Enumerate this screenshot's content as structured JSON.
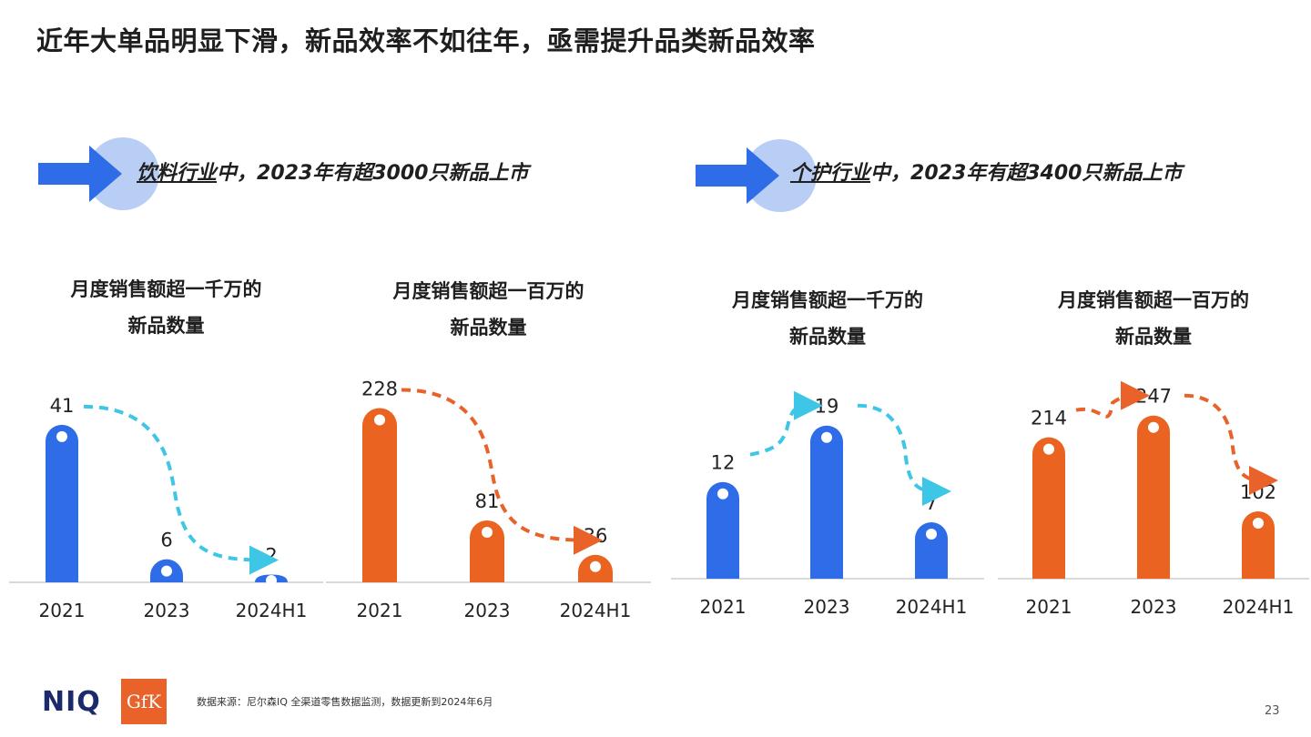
{
  "page": {
    "title": "近年大单品明显下滑，新品效率不如往年，亟需提升品类新品效率",
    "page_number": "23",
    "source": "数据来源：尼尔森IQ 全渠道零售数据监测，数据更新到2024年6月",
    "logos": {
      "niq": "NIQ",
      "gfk": "GfK"
    }
  },
  "sections": [
    {
      "underlined": "饮料行业",
      "rest": "中，2023年有超3000只新品上市"
    },
    {
      "underlined": "个护行业",
      "rest": "中，2023年有超3400只新品上市"
    }
  ],
  "colors": {
    "blue": "#2f6de8",
    "orange": "#ea6321",
    "cyan_arrow": "#3ec6e6",
    "orange_arrow": "#e8622a",
    "badge": "#b9cef5"
  },
  "chart_data": [
    {
      "type": "bar",
      "title_line1": "月度销售额超一千万的",
      "title_line2": "新品数量",
      "categories": [
        "2021",
        "2023",
        "2024H1"
      ],
      "values": [
        41,
        6,
        2
      ],
      "color": "#2f6de8",
      "arrow_color": "#3ec6e6",
      "ylim": [
        0,
        45
      ]
    },
    {
      "type": "bar",
      "title_line1": "月度销售额超一百万的",
      "title_line2": "新品数量",
      "categories": [
        "2021",
        "2023",
        "2024H1"
      ],
      "values": [
        228,
        81,
        36
      ],
      "color": "#ea6321",
      "arrow_color": "#e8622a",
      "ylim": [
        0,
        250
      ]
    },
    {
      "type": "bar",
      "title_line1": "月度销售额超一千万的",
      "title_line2": "新品数量",
      "categories": [
        "2021",
        "2023",
        "2024H1"
      ],
      "values": [
        12,
        19,
        7
      ],
      "color": "#2f6de8",
      "arrow_color": "#3ec6e6",
      "ylim": [
        0,
        21
      ]
    },
    {
      "type": "bar",
      "title_line1": "月度销售额超一百万的",
      "title_line2": "新品数量",
      "categories": [
        "2021",
        "2023",
        "2024H1"
      ],
      "values": [
        214,
        247,
        102
      ],
      "color": "#ea6321",
      "arrow_color": "#e8622a",
      "ylim": [
        0,
        270
      ]
    }
  ]
}
